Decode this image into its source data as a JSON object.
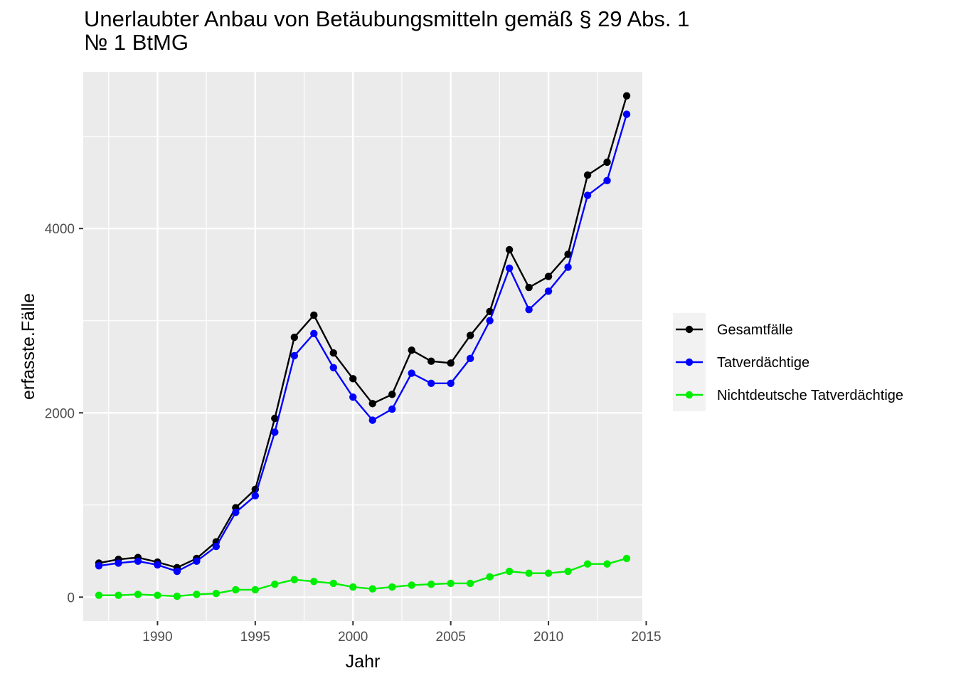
{
  "chart_data": {
    "type": "line",
    "title": "Unerlaubter Anbau von Betäubungsmitteln gemäß § 29 Abs. 1\n№ 1 BtMG",
    "xlabel": "Jahr",
    "ylabel": "erfasste.Fälle",
    "x": [
      1987,
      1988,
      1989,
      1990,
      1991,
      1992,
      1993,
      1994,
      1995,
      1996,
      1997,
      1998,
      1999,
      2000,
      2001,
      2002,
      2003,
      2004,
      2005,
      2006,
      2007,
      2008,
      2009,
      2010,
      2011,
      2012,
      2013,
      2014
    ],
    "xlim": [
      1986.2,
      2014.8
    ],
    "ylim": [
      -260,
      5700
    ],
    "xticks": [
      1990,
      1995,
      2000,
      2005,
      2010,
      2015
    ],
    "yticks": [
      0,
      2000,
      4000
    ],
    "grid": true,
    "legend_position": "right",
    "series": [
      {
        "name": "Gesamtfälle",
        "color": "#000000",
        "values": [
          370,
          410,
          430,
          380,
          320,
          420,
          600,
          970,
          1170,
          1940,
          2820,
          3060,
          2650,
          2370,
          2100,
          2200,
          2680,
          2560,
          2540,
          2840,
          3100,
          3770,
          3360,
          3480,
          3720,
          4580,
          4720,
          5440
        ]
      },
      {
        "name": "Tatverdächtige",
        "color": "#0000FF",
        "values": [
          340,
          370,
          390,
          350,
          280,
          390,
          550,
          920,
          1100,
          1790,
          2620,
          2860,
          2490,
          2170,
          1920,
          2040,
          2430,
          2320,
          2320,
          2590,
          3000,
          3570,
          3120,
          3320,
          3580,
          4360,
          4520,
          5240
        ]
      },
      {
        "name": "Nichtdeutsche Tatverdächtige",
        "color": "#00EE00",
        "values": [
          20,
          20,
          30,
          20,
          10,
          30,
          40,
          80,
          80,
          140,
          190,
          170,
          150,
          110,
          90,
          110,
          130,
          140,
          150,
          150,
          220,
          280,
          260,
          260,
          280,
          360,
          360,
          420
        ]
      }
    ]
  }
}
